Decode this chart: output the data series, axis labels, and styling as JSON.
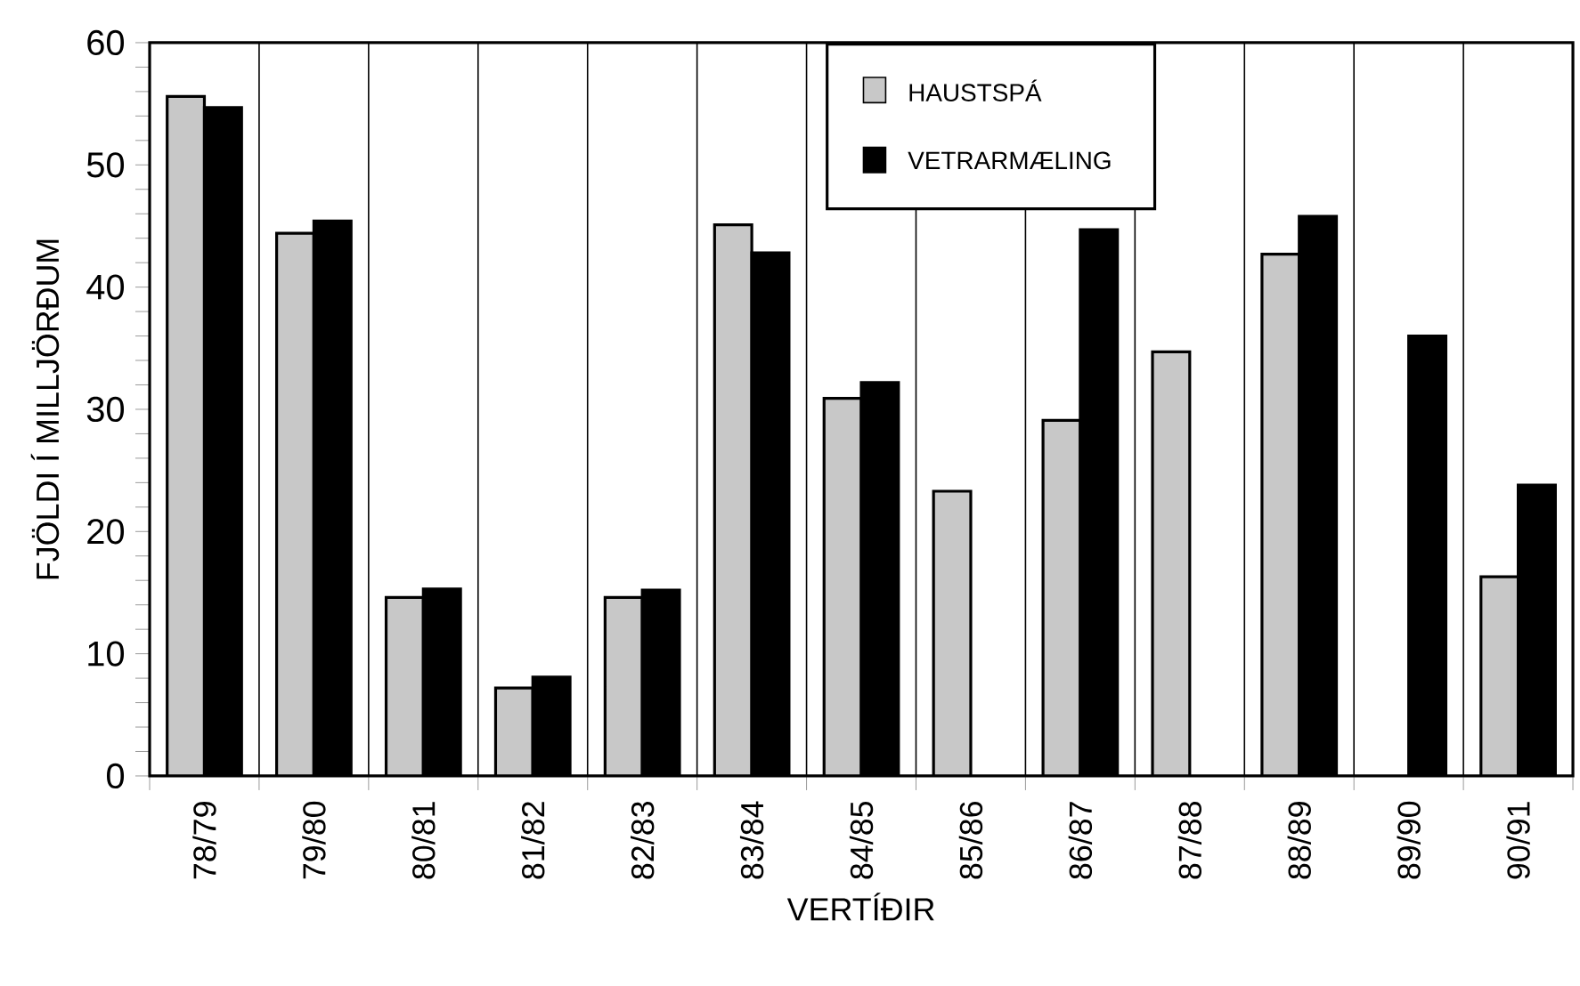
{
  "chart_data": {
    "type": "bar",
    "xlabel": "VERTÍÐIR",
    "ylabel": "FJÖLDI Í MILLJÖRÐUM",
    "categories": [
      "78/79",
      "79/80",
      "80/81",
      "81/82",
      "82/83",
      "83/84",
      "84/85",
      "85/86",
      "86/87",
      "87/88",
      "88/89",
      "89/90",
      "90/91"
    ],
    "series": [
      {
        "name": "HAUSTSPÁ",
        "color": "#c8c8c8",
        "values": [
          55.6,
          44.4,
          14.6,
          7.2,
          14.6,
          45.1,
          30.9,
          23.3,
          29.1,
          34.7,
          42.7,
          null,
          16.3
        ]
      },
      {
        "name": "VETRARMÆLING",
        "color": "#000000",
        "values": [
          54.7,
          45.4,
          15.3,
          8.1,
          15.2,
          42.8,
          32.2,
          null,
          44.7,
          null,
          45.8,
          36.0,
          23.8
        ]
      }
    ],
    "ylim": [
      0,
      60
    ],
    "yticks": [
      0,
      10,
      20,
      30,
      40,
      50,
      60
    ],
    "grid": "x",
    "legend": "top"
  }
}
